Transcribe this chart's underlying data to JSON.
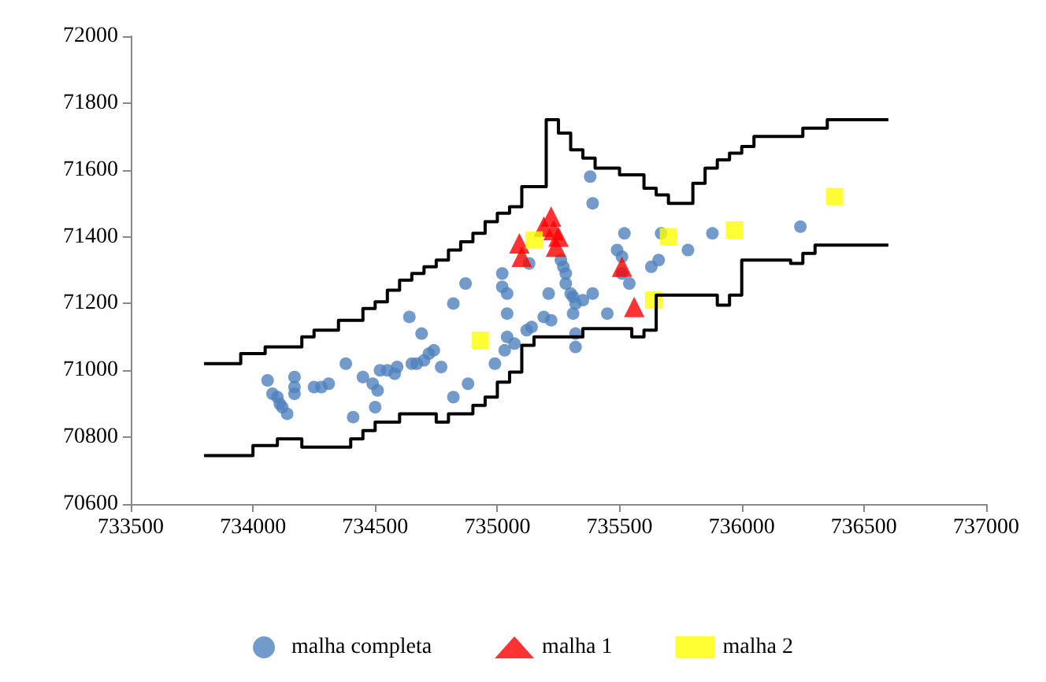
{
  "chart_data": {
    "type": "scatter",
    "xlim": [
      733500,
      737000
    ],
    "xticks": [
      733500,
      734000,
      734500,
      735000,
      735500,
      736000,
      736500,
      737000
    ],
    "ylim": [
      70600,
      72000
    ],
    "yticks": [
      70600,
      70800,
      71000,
      71200,
      71400,
      71600,
      71800,
      72000
    ],
    "grid": false,
    "legend": "bottom",
    "series": [
      {
        "type": "step",
        "color": "#000000",
        "marker": "none",
        "x": [
          733800,
          733950,
          734050,
          734200,
          734250,
          734350,
          734450,
          734500,
          734550,
          734600,
          734650,
          734700,
          734750,
          734800,
          734850,
          734900,
          734950,
          735000,
          735050,
          735100,
          735200,
          735250,
          735300,
          735350,
          735400,
          735500,
          735600,
          735650,
          735700,
          735800,
          735850,
          735900,
          735950,
          736000,
          736050,
          736250,
          736350,
          736600
        ],
        "values": [
          71020,
          71050,
          71070,
          71100,
          71120,
          71150,
          71185,
          71205,
          71240,
          71270,
          71290,
          71310,
          71330,
          71360,
          71385,
          71410,
          71445,
          71470,
          71490,
          71550,
          71750,
          71710,
          71660,
          71635,
          71605,
          71585,
          71545,
          71525,
          71500,
          71560,
          71605,
          71630,
          71650,
          71670,
          71700,
          71725,
          71750,
          71750
        ]
      },
      {
        "type": "step",
        "color": "#000000",
        "marker": "none",
        "x": [
          733800,
          734000,
          734100,
          734200,
          734400,
          734450,
          734500,
          734600,
          734750,
          734800,
          734900,
          734950,
          735000,
          735050,
          735100,
          735150,
          735350,
          735550,
          735600,
          735650,
          735900,
          735950,
          736000,
          736200,
          736250,
          736300,
          736600
        ],
        "values": [
          70745,
          70775,
          70795,
          70770,
          70795,
          70820,
          70845,
          70870,
          70845,
          70870,
          70895,
          70920,
          70965,
          70995,
          71075,
          71100,
          71125,
          71100,
          71120,
          71225,
          71195,
          71225,
          71330,
          71320,
          71350,
          71375,
          71375
        ]
      },
      {
        "name": "malha completa",
        "color": "#4f81bd",
        "marker": "circle",
        "x": [
          734060,
          734080,
          734100,
          734110,
          734120,
          734140,
          734170,
          734170,
          734170,
          734250,
          734280,
          734310,
          734380,
          734410,
          734450,
          734490,
          734510,
          734500,
          734520,
          734550,
          734580,
          734590,
          734650,
          734670,
          734700,
          734720,
          734740,
          734770,
          734640,
          734690,
          734820,
          734880,
          734820,
          734870,
          735380,
          735390,
          735520,
          735670,
          735490,
          735510,
          735780,
          735880,
          736240,
          735130,
          735260,
          735270,
          735280,
          735280,
          735300,
          735310,
          735320,
          735350,
          735390,
          735210,
          735020,
          735020,
          735040,
          735040,
          735040,
          735070,
          735030,
          734990,
          735120,
          735140,
          735190,
          735220,
          735310,
          735320,
          735320,
          735450,
          735540,
          735510,
          735630,
          735660
        ],
        "values": [
          70970,
          70930,
          70920,
          70900,
          70890,
          70870,
          70980,
          70950,
          70930,
          70950,
          70950,
          70960,
          71020,
          70860,
          70980,
          70960,
          70940,
          70890,
          71000,
          71000,
          70990,
          71010,
          71020,
          71020,
          71030,
          71050,
          71060,
          71010,
          71160,
          71110,
          70920,
          70960,
          71200,
          71260,
          71580,
          71500,
          71410,
          71410,
          71360,
          71340,
          71360,
          71410,
          71430,
          71320,
          71330,
          71310,
          71290,
          71260,
          71230,
          71220,
          71200,
          71210,
          71230,
          71230,
          71290,
          71250,
          71230,
          71170,
          71100,
          71080,
          71060,
          71020,
          71120,
          71130,
          71160,
          71150,
          71170,
          71110,
          71070,
          71170,
          71260,
          71290,
          71310,
          71330
        ]
      },
      {
        "name": "malha 1",
        "color": "#ff0000",
        "marker": "triangle",
        "x": [
          735090,
          735100,
          735190,
          735220,
          735230,
          735240,
          735250,
          735510,
          735560
        ],
        "values": [
          71380,
          71340,
          71430,
          71460,
          71420,
          71370,
          71400,
          71310,
          71190
        ]
      },
      {
        "name": "malha 2",
        "color": "#ffff00",
        "marker": "square",
        "x": [
          734930,
          735150,
          735700,
          735640,
          735970,
          736380
        ],
        "values": [
          71090,
          71390,
          71400,
          71210,
          71420,
          71520
        ]
      }
    ]
  }
}
